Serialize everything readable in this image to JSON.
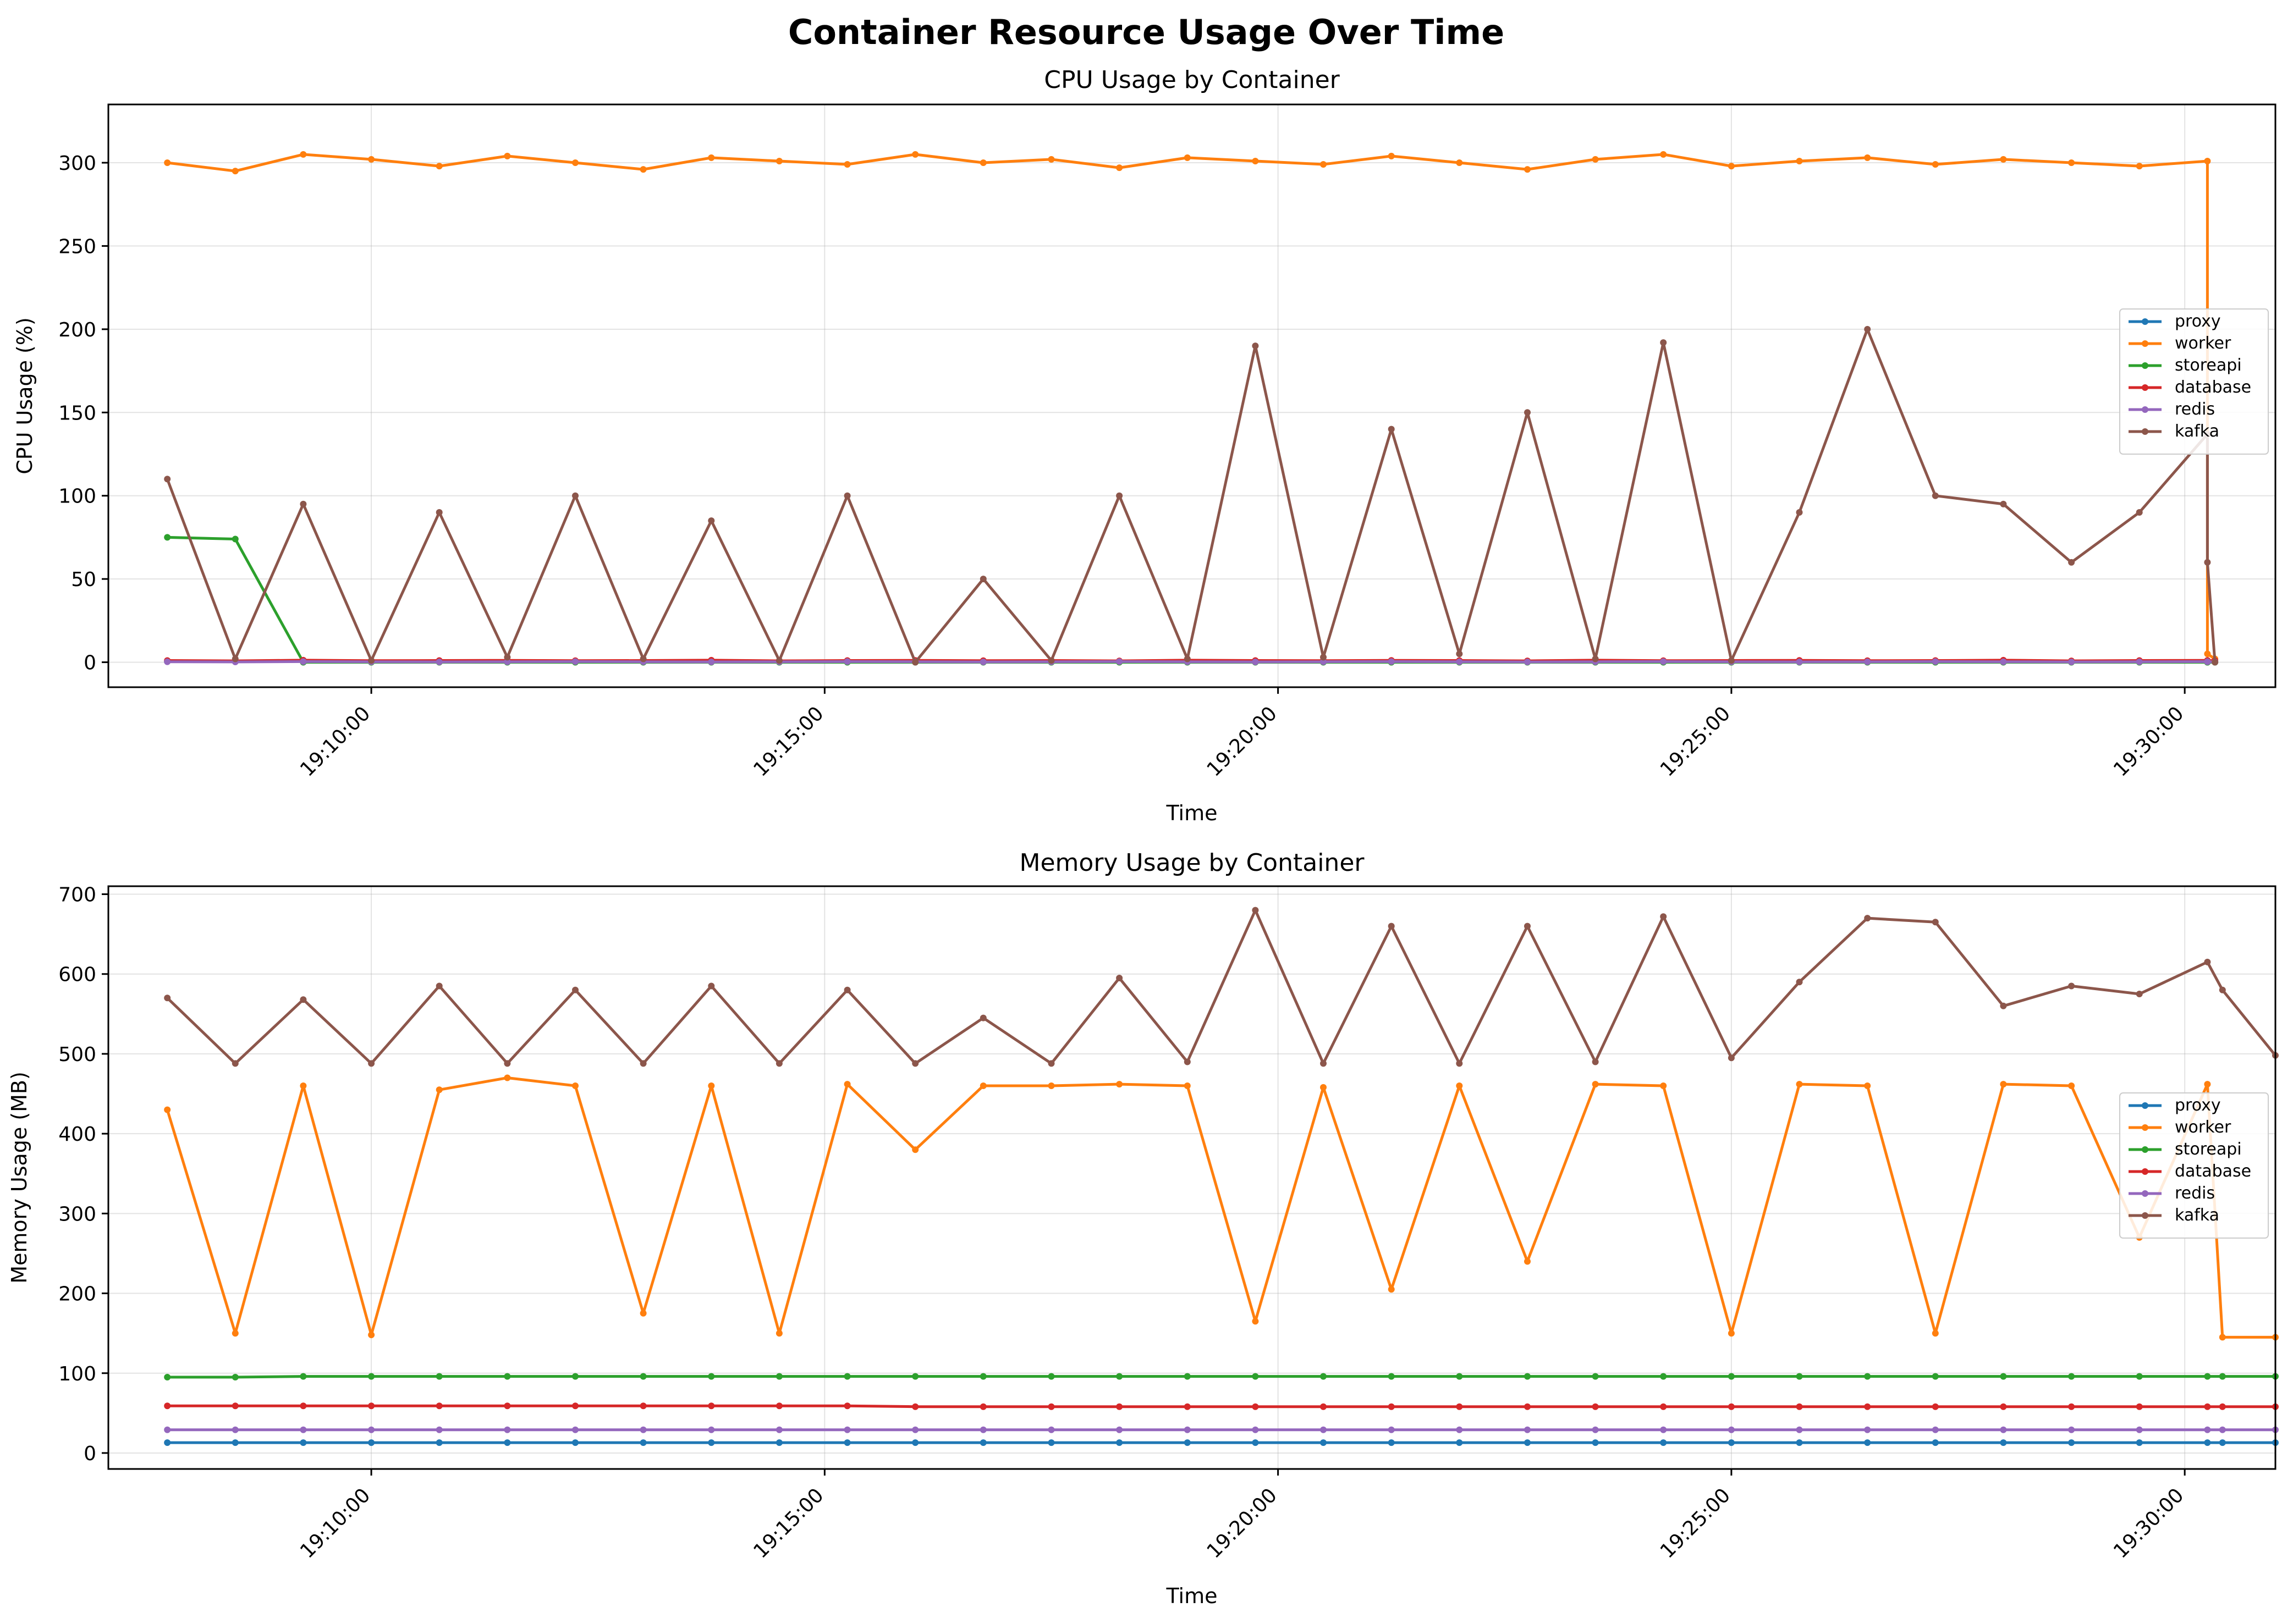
{
  "figure": {
    "suptitle": "Container Resource Usage Over Time"
  },
  "colors": {
    "proxy": "#1f77b4",
    "worker": "#ff7f0e",
    "storeapi": "#2ca02c",
    "database": "#d62728",
    "redis": "#9467bd",
    "kafka": "#8c564b"
  },
  "chart_data": [
    {
      "type": "line",
      "title": "CPU Usage by Container",
      "xlabel": "Time",
      "ylabel": "CPU Usage (%)",
      "x_ticks": [
        "19:10:00",
        "19:15:00",
        "19:20:00",
        "19:25:00",
        "19:30:00"
      ],
      "x_tick_seconds": [
        600,
        900,
        1200,
        1500,
        1800
      ],
      "xlim_seconds": [
        426,
        1860
      ],
      "ylim": [
        -15,
        335
      ],
      "y_ticks": [
        0,
        50,
        100,
        150,
        200,
        250,
        300
      ],
      "grid": true,
      "legend_position": "right",
      "x_seconds": [
        465,
        510,
        555,
        600,
        645,
        690,
        735,
        780,
        825,
        870,
        915,
        960,
        1005,
        1050,
        1095,
        1140,
        1185,
        1230,
        1275,
        1320,
        1365,
        1410,
        1455,
        1500,
        1545,
        1590,
        1635,
        1680,
        1725,
        1770,
        1815,
        1815,
        1820
      ],
      "series": [
        {
          "name": "proxy",
          "values": [
            0.5,
            0.4,
            0.6,
            0.5,
            0.4,
            0.5,
            0.6,
            0.5,
            0.4,
            0.5,
            0.6,
            0.5,
            0.4,
            0.5,
            0.6,
            0.5,
            0.4,
            0.5,
            0.6,
            0.5,
            0.4,
            0.5,
            0.6,
            0.5,
            0.4,
            0.5,
            0.6,
            0.5,
            0.4,
            0.5,
            0.6,
            0.5,
            0.4
          ]
        },
        {
          "name": "worker",
          "values": [
            300,
            295,
            305,
            302,
            298,
            304,
            300,
            296,
            303,
            301,
            299,
            305,
            300,
            302,
            297,
            303,
            301,
            299,
            304,
            300,
            296,
            302,
            305,
            298,
            301,
            303,
            299,
            302,
            300,
            298,
            301,
            5,
            2
          ]
        },
        {
          "name": "storeapi",
          "values": [
            75,
            74,
            0,
            0,
            0,
            0,
            0,
            0,
            0,
            0,
            0,
            0,
            0,
            0,
            0,
            0,
            0,
            0,
            0,
            0,
            0,
            0,
            0,
            0,
            0,
            0,
            0,
            0,
            0,
            0,
            0,
            0,
            0
          ]
        },
        {
          "name": "database",
          "values": [
            1.0,
            0.8,
            1.2,
            0.9,
            1.0,
            1.1,
            0.9,
            1.0,
            1.2,
            0.8,
            1.0,
            1.1,
            0.9,
            1.0,
            0.8,
            1.2,
            1.0,
            0.9,
            1.1,
            1.0,
            0.8,
            1.2,
            0.9,
            1.0,
            1.1,
            0.9,
            1.0,
            1.2,
            0.8,
            1.0,
            1.1,
            0.9,
            1.0
          ]
        },
        {
          "name": "redis",
          "values": [
            0.3,
            0.2,
            0.4,
            0.3,
            0.2,
            0.3,
            0.4,
            0.3,
            0.2,
            0.3,
            0.4,
            0.3,
            0.2,
            0.3,
            0.4,
            0.3,
            0.2,
            0.3,
            0.4,
            0.3,
            0.2,
            0.3,
            0.4,
            0.3,
            0.2,
            0.3,
            0.4,
            0.3,
            0.2,
            0.3,
            0.4,
            0.3,
            0.2
          ]
        },
        {
          "name": "kafka",
          "values": [
            110,
            2,
            95,
            1,
            90,
            3,
            100,
            2,
            85,
            1,
            100,
            0,
            50,
            1,
            100,
            2,
            190,
            3,
            140,
            5,
            150,
            2,
            192,
            1,
            90,
            200,
            100,
            95,
            60,
            90,
            137,
            60,
            0
          ]
        }
      ]
    },
    {
      "type": "line",
      "title": "Memory Usage by Container",
      "xlabel": "Time",
      "ylabel": "Memory Usage (MB)",
      "x_ticks": [
        "19:10:00",
        "19:15:00",
        "19:20:00",
        "19:25:00",
        "19:30:00"
      ],
      "x_tick_seconds": [
        600,
        900,
        1200,
        1500,
        1800
      ],
      "xlim_seconds": [
        426,
        1860
      ],
      "ylim": [
        -20,
        710
      ],
      "y_ticks": [
        0,
        100,
        200,
        300,
        400,
        500,
        600,
        700
      ],
      "grid": true,
      "legend_position": "right",
      "x_seconds": [
        465,
        510,
        555,
        600,
        645,
        690,
        735,
        780,
        825,
        870,
        915,
        960,
        1005,
        1050,
        1095,
        1140,
        1185,
        1230,
        1275,
        1320,
        1365,
        1410,
        1455,
        1500,
        1545,
        1590,
        1635,
        1680,
        1725,
        1770,
        1815,
        1825,
        1860
      ],
      "series": [
        {
          "name": "proxy",
          "values": [
            13,
            13,
            13,
            13,
            13,
            13,
            13,
            13,
            13,
            13,
            13,
            13,
            13,
            13,
            13,
            13,
            13,
            13,
            13,
            13,
            13,
            13,
            13,
            13,
            13,
            13,
            13,
            13,
            13,
            13,
            13,
            13,
            13
          ]
        },
        {
          "name": "worker",
          "values": [
            430,
            150,
            460,
            148,
            455,
            470,
            460,
            175,
            460,
            150,
            462,
            380,
            460,
            460,
            462,
            460,
            165,
            458,
            205,
            460,
            240,
            462,
            460,
            150,
            462,
            460,
            150,
            462,
            460,
            270,
            462,
            145,
            145
          ]
        },
        {
          "name": "database",
          "values": [
            59,
            59,
            59,
            59,
            59,
            59,
            59,
            59,
            59,
            59,
            59,
            58,
            58,
            58,
            58,
            58,
            58,
            58,
            58,
            58,
            58,
            58,
            58,
            58,
            58,
            58,
            58,
            58,
            58,
            58,
            58,
            58,
            58
          ]
        },
        {
          "name": "storeapi",
          "values": [
            95,
            95,
            96,
            96,
            96,
            96,
            96,
            96,
            96,
            96,
            96,
            96,
            96,
            96,
            96,
            96,
            96,
            96,
            96,
            96,
            96,
            96,
            96,
            96,
            96,
            96,
            96,
            96,
            96,
            96,
            96,
            96,
            96
          ]
        },
        {
          "name": "redis",
          "values": [
            29,
            29,
            29,
            29,
            29,
            29,
            29,
            29,
            29,
            29,
            29,
            29,
            29,
            29,
            29,
            29,
            29,
            29,
            29,
            29,
            29,
            29,
            29,
            29,
            29,
            29,
            29,
            29,
            29,
            29,
            29,
            29,
            29
          ]
        },
        {
          "name": "kafka",
          "values": [
            570,
            488,
            568,
            488,
            585,
            488,
            580,
            488,
            585,
            488,
            580,
            488,
            545,
            488,
            595,
            490,
            680,
            488,
            660,
            488,
            660,
            490,
            672,
            495,
            590,
            670,
            665,
            560,
            585,
            575,
            615,
            580,
            498
          ]
        }
      ]
    }
  ]
}
